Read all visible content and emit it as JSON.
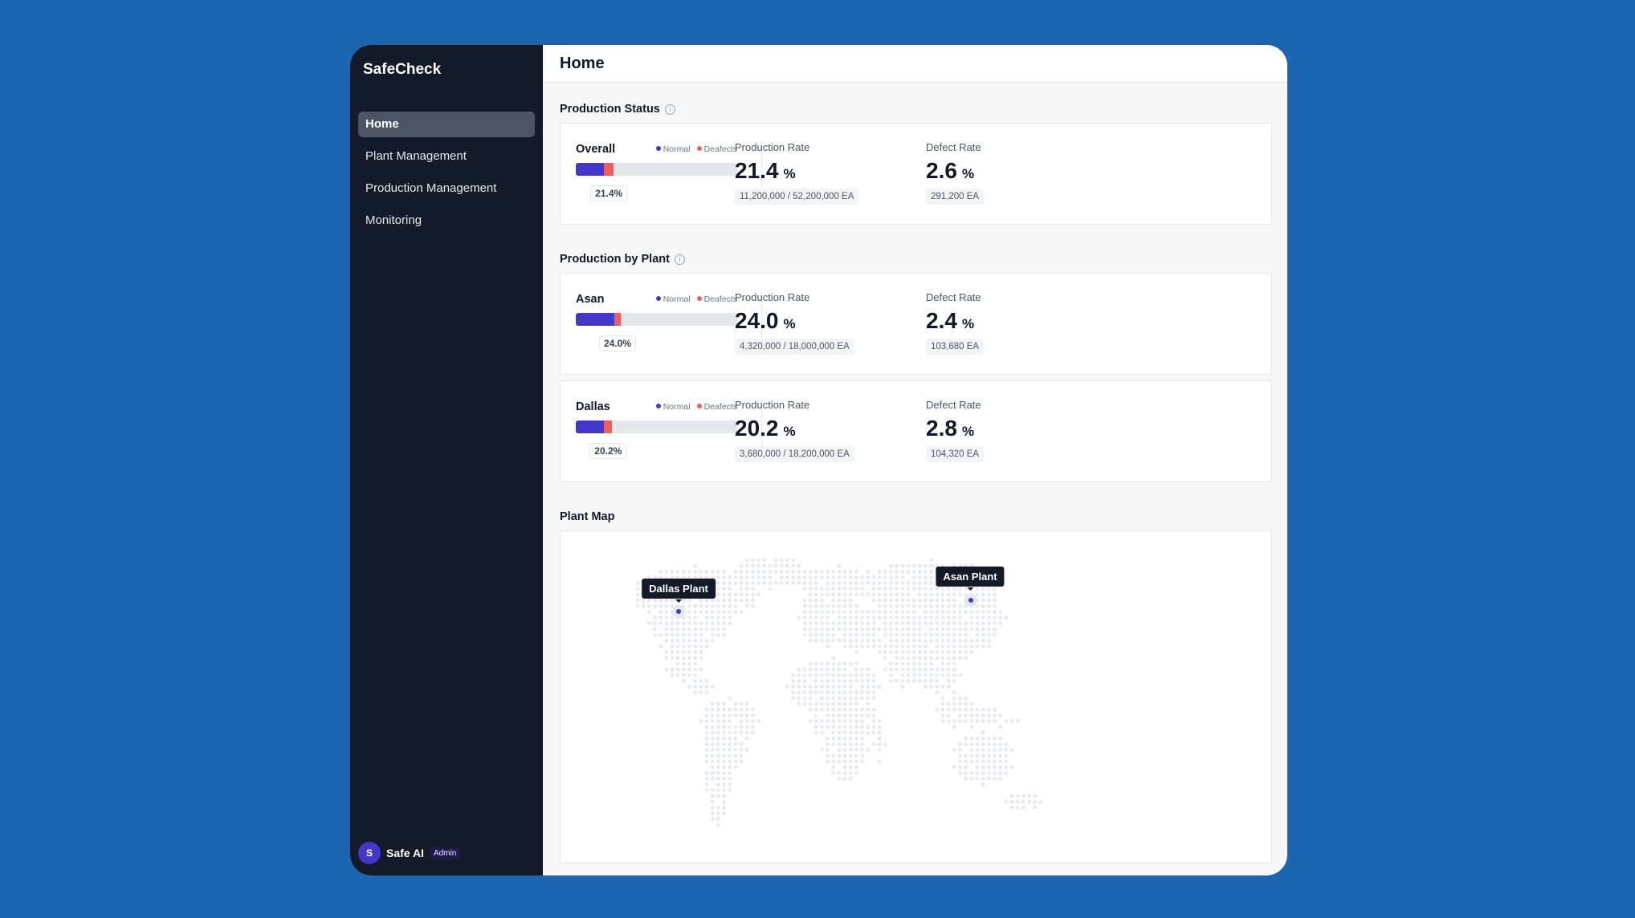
{
  "app": {
    "name": "SafeCheck"
  },
  "sidebar": {
    "items": [
      {
        "label": "Home",
        "active": true
      },
      {
        "label": "Plant Management"
      },
      {
        "label": "Production Management"
      },
      {
        "label": "Monitoring"
      }
    ]
  },
  "user": {
    "initial": "S",
    "name": "Safe AI",
    "role": "Admin"
  },
  "header": {
    "title": "Home"
  },
  "sections": {
    "status": "Production Status",
    "by_plant": "Production by Plant",
    "map": "Plant Map",
    "info_icon": "i"
  },
  "legend": {
    "normal": "Normal",
    "defects": "Deafects"
  },
  "colors": {
    "normal": "#4338ca",
    "defects": "#ef5d5d",
    "background": "#1c66b1"
  },
  "labels": {
    "production_rate": "Production Rate",
    "defect_rate": "Defect Rate",
    "pct": "%"
  },
  "overall": {
    "name": "Overall",
    "tag": "21.4%",
    "bar": {
      "normal": 17.6,
      "defect": 5.8
    },
    "production_rate": "21.4",
    "production_detail": "11,200,000  / 52,200,000  EA",
    "defect_rate": "2.6",
    "defect_detail": "291,200  EA"
  },
  "plants": [
    {
      "name": "Asan",
      "tag": "24.0%",
      "bar": {
        "normal": 24.0,
        "defect": 3.7
      },
      "production_rate": "24.0",
      "production_detail": "4,320,000  / 18,000,000  EA",
      "defect_rate": "2.4",
      "defect_detail": "103,680  EA"
    },
    {
      "name": "Dallas",
      "tag": "20.2%",
      "bar": {
        "normal": 17.6,
        "defect": 4.9
      },
      "production_rate": "20.2",
      "production_detail": "3,680,000  / 18,200,000  EA",
      "defect_rate": "2.8",
      "defect_detail": "104,320  EA"
    }
  ],
  "map": {
    "pins": [
      {
        "label": "Dallas Plant"
      },
      {
        "label": "Asan Plant"
      }
    ]
  }
}
